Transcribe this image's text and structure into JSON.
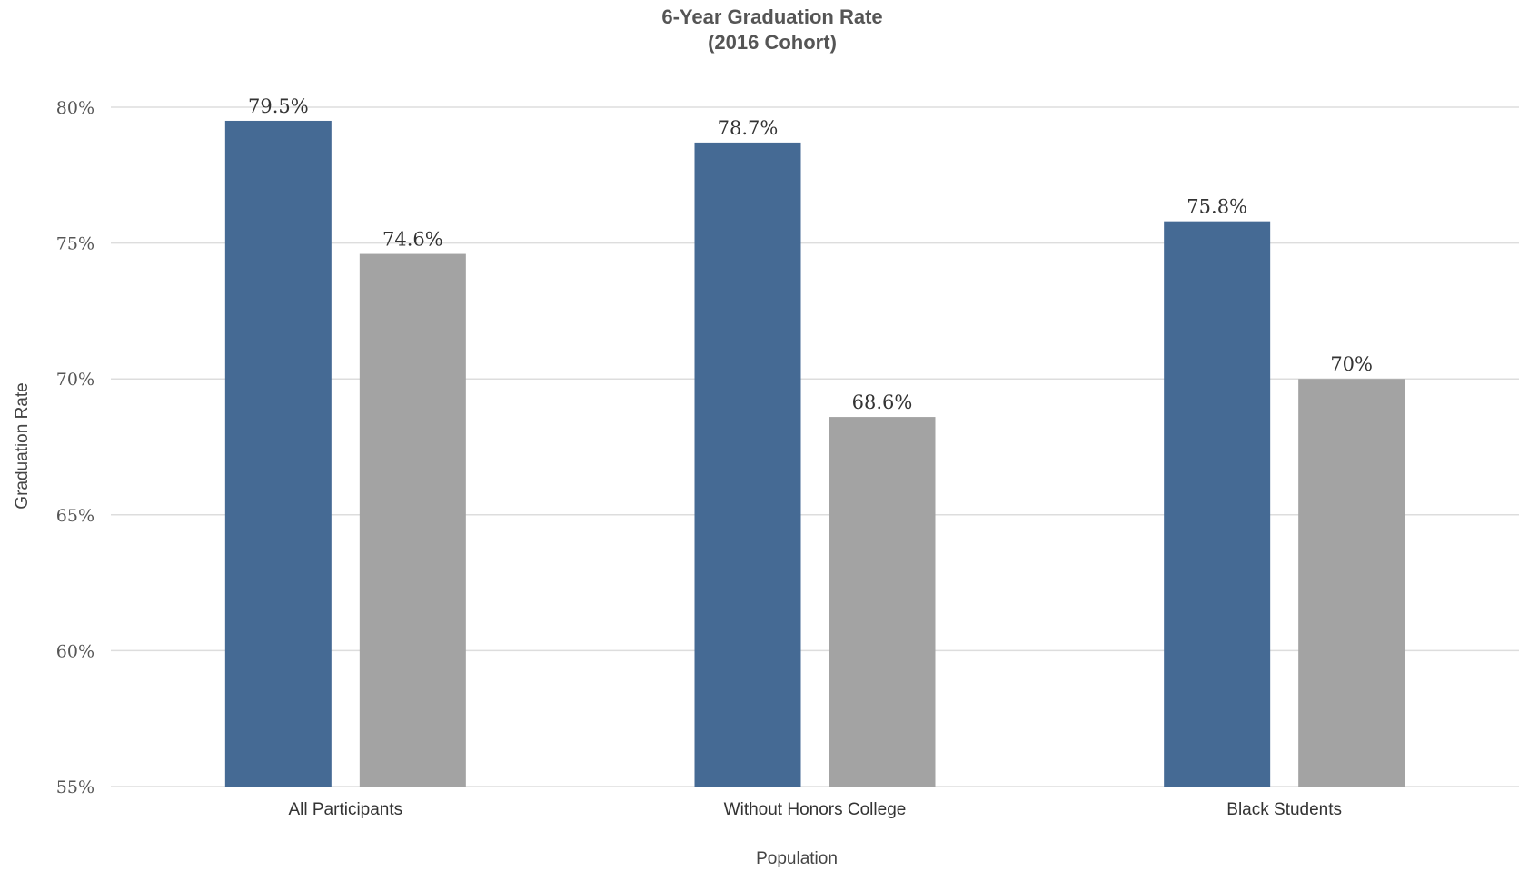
{
  "chart_data": {
    "type": "bar",
    "title": "6-Year Graduation Rate",
    "subtitle": "(2016 Cohort)",
    "xlabel": "Population",
    "ylabel": "Graduation Rate",
    "categories": [
      "All Participants",
      "Without Honors College",
      "Black Students"
    ],
    "series": [
      {
        "color": "#456a94",
        "values": [
          79.5,
          78.7,
          75.8
        ],
        "labels": [
          "79.5%",
          "78.7%",
          "75.8%"
        ]
      },
      {
        "color": "#a3a3a3",
        "values": [
          74.6,
          68.6,
          70
        ],
        "labels": [
          "74.6%",
          "68.6%",
          "70%"
        ]
      }
    ],
    "ylim": [
      55,
      80
    ],
    "yticks": [
      55,
      60,
      65,
      70,
      75,
      80
    ],
    "ytick_labels": [
      "55%",
      "60%",
      "65%",
      "70%",
      "75%",
      "80%"
    ],
    "grid": true,
    "legend": "none"
  }
}
